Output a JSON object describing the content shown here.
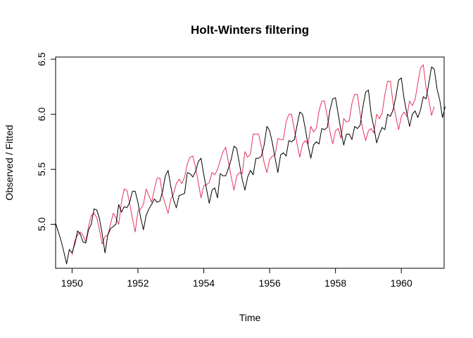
{
  "chart_data": {
    "type": "line",
    "title": "Holt-Winters filtering",
    "xlabel": "Time",
    "ylabel": "Observed / Fitted",
    "xlim": [
      1949.5,
      1961.3
    ],
    "ylim": [
      4.6,
      6.52
    ],
    "x_ticks": [
      1950,
      1952,
      1954,
      1956,
      1958,
      1960
    ],
    "y_ticks": [
      5.0,
      5.5,
      6.0,
      6.5
    ],
    "x_tick_labels": [
      "1950",
      "1952",
      "1954",
      "1956",
      "1958",
      "1960"
    ],
    "y_tick_labels": [
      "5.0",
      "5.5",
      "6.0",
      "6.5"
    ],
    "grid": false,
    "series": [
      {
        "color": "#000000",
        "start": 1949.5,
        "frequency": 12,
        "values": [
          5.01,
          4.93,
          4.85,
          4.75,
          4.64,
          4.77,
          4.74,
          4.82,
          4.94,
          4.91,
          4.84,
          4.83,
          4.95,
          5.0,
          5.14,
          5.13,
          5.05,
          4.91,
          4.74,
          4.9,
          4.96,
          4.98,
          5.0,
          5.18,
          5.11,
          5.16,
          5.15,
          5.2,
          5.3,
          5.3,
          5.2,
          5.06,
          4.95,
          5.08,
          5.14,
          5.18,
          5.23,
          5.2,
          5.21,
          5.3,
          5.44,
          5.49,
          5.34,
          5.22,
          5.15,
          5.26,
          5.27,
          5.28,
          5.47,
          5.46,
          5.43,
          5.48,
          5.57,
          5.6,
          5.45,
          5.32,
          5.19,
          5.31,
          5.33,
          5.24,
          5.46,
          5.44,
          5.44,
          5.51,
          5.59,
          5.71,
          5.69,
          5.55,
          5.41,
          5.31,
          5.43,
          5.49,
          5.45,
          5.6,
          5.6,
          5.62,
          5.72,
          5.89,
          5.85,
          5.74,
          5.6,
          5.47,
          5.63,
          5.65,
          5.62,
          5.76,
          5.75,
          5.77,
          5.9,
          6.02,
          6.0,
          5.87,
          5.72,
          5.6,
          5.72,
          5.75,
          5.73,
          5.87,
          5.86,
          5.88,
          6.04,
          6.14,
          6.15,
          6.0,
          5.85,
          5.72,
          5.82,
          5.82,
          5.77,
          5.89,
          5.87,
          5.9,
          6.07,
          6.2,
          6.22,
          6.0,
          5.88,
          5.74,
          5.82,
          5.88,
          5.86,
          6.0,
          5.98,
          6.04,
          6.16,
          6.31,
          6.33,
          6.14,
          6.01,
          5.89,
          6.0,
          6.03,
          5.97,
          6.04,
          6.16,
          6.14,
          6.28,
          6.43,
          6.41,
          6.23,
          6.13,
          5.97,
          6.07
        ]
      },
      {
        "color": "#e8325c",
        "start": 1950.0,
        "frequency": 12,
        "values": [
          4.72,
          4.85,
          4.9,
          4.93,
          4.9,
          4.84,
          4.98,
          5.08,
          5.1,
          5.06,
          4.95,
          4.82,
          4.89,
          4.9,
          5.0,
          5.1,
          5.06,
          5.0,
          5.2,
          5.32,
          5.31,
          5.19,
          5.05,
          4.93,
          5.12,
          5.14,
          5.18,
          5.32,
          5.26,
          5.2,
          5.32,
          5.42,
          5.42,
          5.26,
          5.18,
          5.1,
          5.23,
          5.28,
          5.37,
          5.41,
          5.37,
          5.43,
          5.55,
          5.61,
          5.62,
          5.52,
          5.38,
          5.24,
          5.35,
          5.36,
          5.38,
          5.47,
          5.45,
          5.5,
          5.58,
          5.66,
          5.7,
          5.56,
          5.43,
          5.31,
          5.44,
          5.47,
          5.46,
          5.66,
          5.61,
          5.64,
          5.82,
          5.82,
          5.82,
          5.7,
          5.56,
          5.47,
          5.59,
          5.62,
          5.63,
          5.78,
          5.77,
          5.77,
          5.93,
          6.0,
          6.0,
          5.86,
          5.73,
          5.61,
          5.73,
          5.76,
          5.73,
          5.89,
          5.84,
          5.87,
          6.03,
          6.12,
          6.12,
          5.98,
          5.84,
          5.73,
          5.85,
          5.87,
          5.78,
          5.96,
          5.93,
          5.94,
          6.1,
          6.18,
          6.18,
          6.0,
          5.86,
          5.76,
          5.85,
          5.87,
          5.83,
          6.0,
          5.96,
          6.01,
          6.18,
          6.3,
          6.3,
          6.1,
          5.98,
          5.86,
          5.98,
          6.02,
          5.98,
          6.12,
          6.08,
          6.13,
          6.28,
          6.42,
          6.45,
          6.24,
          6.13,
          5.99,
          6.07
        ]
      }
    ]
  }
}
